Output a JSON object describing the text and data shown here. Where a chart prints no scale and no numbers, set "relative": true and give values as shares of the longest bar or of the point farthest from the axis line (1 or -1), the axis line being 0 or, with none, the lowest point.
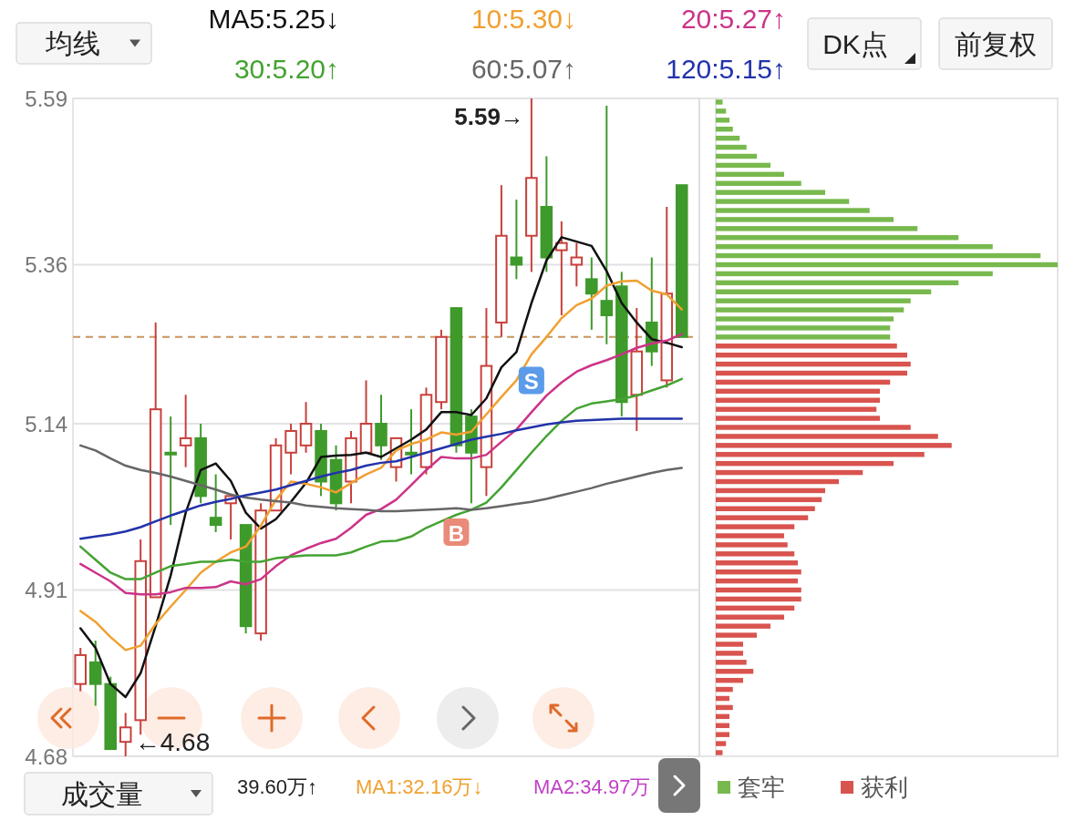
{
  "chart_data": [
    {
      "type": "candlestick",
      "categories": [
        null,
        null,
        null,
        null,
        null,
        null,
        null,
        null,
        null,
        null,
        null,
        null,
        null,
        null,
        null,
        null,
        null,
        null,
        null,
        null,
        null,
        null,
        null,
        null,
        null,
        null,
        null,
        null,
        null,
        null,
        null,
        null,
        null,
        null,
        null,
        null,
        null,
        null,
        null,
        null,
        null
      ],
      "ohlc": [
        [
          4.78,
          4.83,
          4.77,
          4.82
        ],
        [
          4.81,
          4.84,
          4.75,
          4.78
        ],
        [
          4.78,
          4.79,
          4.69,
          4.69
        ],
        [
          4.7,
          4.74,
          4.68,
          4.72
        ],
        [
          4.73,
          4.98,
          4.71,
          4.95
        ],
        [
          4.9,
          5.28,
          4.9,
          5.16
        ],
        [
          5.1,
          5.15,
          5.0,
          5.1
        ],
        [
          5.11,
          5.18,
          5.08,
          5.12
        ],
        [
          5.12,
          5.14,
          5.03,
          5.04
        ],
        [
          5.01,
          5.07,
          4.99,
          5.0
        ],
        [
          5.03,
          5.04,
          4.98,
          5.04
        ],
        [
          5.0,
          5.0,
          4.85,
          4.86
        ],
        [
          4.85,
          5.03,
          4.84,
          5.02
        ],
        [
          5.02,
          5.12,
          5.02,
          5.11
        ],
        [
          5.1,
          5.14,
          5.07,
          5.13
        ],
        [
          5.11,
          5.17,
          5.1,
          5.14
        ],
        [
          5.13,
          5.14,
          5.04,
          5.06
        ],
        [
          5.09,
          5.11,
          5.02,
          5.03
        ],
        [
          5.06,
          5.13,
          5.03,
          5.12
        ],
        [
          5.1,
          5.2,
          5.1,
          5.14
        ],
        [
          5.14,
          5.18,
          5.09,
          5.11
        ],
        [
          5.08,
          5.12,
          5.06,
          5.12
        ],
        [
          5.1,
          5.16,
          5.07,
          5.1
        ],
        [
          5.08,
          5.19,
          5.07,
          5.18
        ],
        [
          5.17,
          5.27,
          5.16,
          5.26
        ],
        [
          5.3,
          5.3,
          5.1,
          5.11
        ],
        [
          5.15,
          5.16,
          5.03,
          5.1
        ],
        [
          5.08,
          5.3,
          5.04,
          5.22
        ],
        [
          5.28,
          5.47,
          5.26,
          5.4
        ],
        [
          5.37,
          5.45,
          5.34,
          5.36
        ],
        [
          5.4,
          5.59,
          5.35,
          5.48
        ],
        [
          5.44,
          5.51,
          5.35,
          5.37
        ],
        [
          5.38,
          5.42,
          5.29,
          5.39
        ],
        [
          5.36,
          5.39,
          5.33,
          5.37
        ],
        [
          5.34,
          5.37,
          5.27,
          5.32
        ],
        [
          5.31,
          5.58,
          5.25,
          5.29
        ],
        [
          5.33,
          5.35,
          5.15,
          5.17
        ],
        [
          5.18,
          5.3,
          5.13,
          5.24
        ],
        [
          5.28,
          5.37,
          5.22,
          5.24
        ],
        [
          5.2,
          5.44,
          5.19,
          5.32
        ],
        [
          5.47,
          5.47,
          5.26,
          5.26
        ]
      ],
      "series": [
        {
          "name": "MA5:5.25↓",
          "type": "line",
          "color": "#111111",
          "values": [
            4.857,
            4.83,
            4.78,
            4.762,
            4.795,
            4.86,
            4.93,
            5.017,
            5.076,
            5.085,
            5.061,
            5.017,
            4.995,
            5.008,
            5.032,
            5.058,
            5.094,
            5.096,
            5.097,
            5.1,
            5.094,
            5.106,
            5.118,
            5.132,
            5.156,
            5.156,
            5.152,
            5.175,
            5.218,
            5.239,
            5.307,
            5.366,
            5.398,
            5.392,
            5.386,
            5.351,
            5.307,
            5.28,
            5.257,
            5.252,
            5.246
          ]
        },
        {
          "name": "10:5.30↓",
          "type": "line",
          "color": "#f0a030",
          "values": [
            4.881,
            4.866,
            4.845,
            4.827,
            4.833,
            4.863,
            4.887,
            4.91,
            4.934,
            4.949,
            4.962,
            4.97,
            4.999,
            5.035,
            5.06,
            5.057,
            5.052,
            5.045,
            5.058,
            5.07,
            5.079,
            5.103,
            5.112,
            5.118,
            5.128,
            5.125,
            5.129,
            5.153,
            5.177,
            5.2,
            5.236,
            5.26,
            5.286,
            5.304,
            5.313,
            5.331,
            5.337,
            5.338,
            5.324,
            5.319,
            5.298
          ]
        },
        {
          "name": "20:5.27↑",
          "type": "line",
          "color": "#cc3388",
          "values": [
            4.946,
            4.934,
            4.922,
            4.906,
            4.904,
            4.904,
            4.907,
            4.913,
            4.913,
            4.914,
            4.922,
            4.918,
            4.925,
            4.943,
            4.958,
            4.967,
            4.975,
            4.981,
            4.996,
            5.014,
            5.022,
            5.035,
            5.055,
            5.076,
            5.094,
            5.092,
            5.092,
            5.097,
            5.115,
            5.132,
            5.156,
            5.179,
            5.197,
            5.212,
            5.221,
            5.228,
            5.236,
            5.245,
            5.251,
            5.255,
            5.264
          ]
        },
        {
          "name": "30:5.20↑",
          "type": "line",
          "color": "#44a332",
          "values": [
            4.97,
            4.952,
            4.934,
            4.925,
            4.925,
            4.934,
            4.943,
            4.946,
            4.949,
            4.949,
            4.952,
            4.949,
            4.949,
            4.954,
            4.956,
            4.958,
            4.958,
            4.958,
            4.962,
            4.97,
            4.977,
            4.978,
            4.984,
            4.996,
            5.005,
            5.014,
            5.021,
            5.031,
            5.052,
            5.076,
            5.1,
            5.123,
            5.144,
            5.161,
            5.168,
            5.171,
            5.174,
            5.179,
            5.186,
            5.193,
            5.202
          ]
        },
        {
          "name": "60:5.07↑",
          "type": "line",
          "color": "#666666",
          "values": [
            5.11,
            5.103,
            5.092,
            5.082,
            5.076,
            5.072,
            5.067,
            5.061,
            5.055,
            5.049,
            5.042,
            5.038,
            5.035,
            5.033,
            5.031,
            5.027,
            5.025,
            5.023,
            5.022,
            5.021,
            5.019,
            5.019,
            5.02,
            5.021,
            5.022,
            5.023,
            5.021,
            5.023,
            5.026,
            5.029,
            5.032,
            5.036,
            5.041,
            5.046,
            5.051,
            5.057,
            5.062,
            5.067,
            5.072,
            5.076,
            5.079
          ]
        },
        {
          "name": "120:5.15↑",
          "type": "line",
          "color": "#2233aa",
          "values": [
            4.981,
            4.984,
            4.987,
            4.991,
            4.997,
            5.005,
            5.013,
            5.02,
            5.027,
            5.032,
            5.036,
            5.041,
            5.045,
            5.049,
            5.055,
            5.061,
            5.067,
            5.072,
            5.076,
            5.082,
            5.086,
            5.088,
            5.094,
            5.1,
            5.106,
            5.112,
            5.118,
            5.122,
            5.126,
            5.131,
            5.135,
            5.139,
            5.142,
            5.144,
            5.145,
            5.146,
            5.147,
            5.147,
            5.147,
            5.147,
            5.147
          ]
        }
      ],
      "ylim": [
        4.68,
        5.59
      ],
      "yticks": [
        5.59,
        5.36,
        5.14,
        4.91,
        4.68
      ],
      "grid": "y",
      "legend": "top",
      "ref_lines": [
        {
          "axis": "y",
          "value": 5.26,
          "color": "#c8955f",
          "line_style": "dashed"
        }
      ],
      "annotations": [
        "均线",
        "DK点",
        "前复权",
        "成交量",
        "39.60万↑",
        "MA1:32.16万↓",
        "MA2:34.97万",
        "5.59→",
        "←4.68",
        {
          "text": "S",
          "y": 5.2
        },
        {
          "text": "B",
          "y": 4.99
        }
      ]
    },
    {
      "type": "bar",
      "orientation": "horizontal",
      "relative": true,
      "categories": [
        null,
        null,
        null,
        null,
        null,
        null,
        null,
        null,
        null,
        null,
        null,
        null,
        null,
        null,
        null,
        null,
        null,
        null,
        null,
        null,
        null,
        null,
        null,
        null,
        null,
        null,
        null,
        null,
        null,
        null,
        null,
        null,
        null,
        null,
        null,
        null,
        null,
        null,
        null,
        null,
        null,
        null,
        null,
        null,
        null,
        null,
        null,
        null,
        null,
        null,
        null,
        null,
        null,
        null,
        null,
        null,
        null,
        null,
        null,
        null,
        null,
        null,
        null,
        null,
        null,
        null,
        null,
        null,
        null,
        null,
        null,
        null,
        null
      ],
      "annotations": [
        "套牢",
        "获利"
      ],
      "values": [
        0.02,
        0.03,
        0.04,
        0.05,
        0.07,
        0.09,
        0.12,
        0.16,
        0.2,
        0.25,
        0.32,
        0.39,
        0.45,
        0.52,
        0.59,
        0.71,
        0.81,
        0.95,
        1,
        0.81,
        0.71,
        0.63,
        0.57,
        0.55,
        0.52,
        0.51,
        0.51,
        0.53,
        0.56,
        0.57,
        0.56,
        0.51,
        0.48,
        0.48,
        0.47,
        0.48,
        0.57,
        0.65,
        0.69,
        0.61,
        0.52,
        0.43,
        0.36,
        0.32,
        0.31,
        0.29,
        0.27,
        0.23,
        0.2,
        0.21,
        0.23,
        0.24,
        0.25,
        0.24,
        0.25,
        0.25,
        0.23,
        0.2,
        0.16,
        0.12,
        0.08,
        0.08,
        0.09,
        0.11,
        0.08,
        0.05,
        0.04,
        0.05,
        0.04,
        0.04,
        0.04,
        0.03,
        0.02
      ],
      "colors": [
        "#78b94e",
        "#78b94e",
        "#78b94e",
        "#78b94e",
        "#78b94e",
        "#78b94e",
        "#78b94e",
        "#78b94e",
        "#78b94e",
        "#78b94e",
        "#78b94e",
        "#78b94e",
        "#78b94e",
        "#78b94e",
        "#78b94e",
        "#78b94e",
        "#78b94e",
        "#78b94e",
        "#78b94e",
        "#78b94e",
        "#78b94e",
        "#78b94e",
        "#78b94e",
        "#78b94e",
        "#78b94e",
        "#78b94e",
        "#78b94e",
        "#d9534f",
        "#d9534f",
        "#d9534f",
        "#d9534f",
        "#d9534f",
        "#d9534f",
        "#d9534f",
        "#d9534f",
        "#d9534f",
        "#d9534f",
        "#d9534f",
        "#d9534f",
        "#d9534f",
        "#d9534f",
        "#d9534f",
        "#d9534f",
        "#d9534f",
        "#d9534f",
        "#d9534f",
        "#d9534f",
        "#d9534f",
        "#d9534f",
        "#d9534f",
        "#d9534f",
        "#d9534f",
        "#d9534f",
        "#d9534f",
        "#d9534f",
        "#d9534f",
        "#d9534f",
        "#d9534f",
        "#d9534f",
        "#d9534f",
        "#d9534f",
        "#d9534f",
        "#d9534f",
        "#d9534f",
        "#d9534f",
        "#d9534f",
        "#d9534f",
        "#d9534f",
        "#d9534f",
        "#d9534f",
        "#d9534f",
        "#d9534f",
        "#d9534f"
      ]
    }
  ]
}
